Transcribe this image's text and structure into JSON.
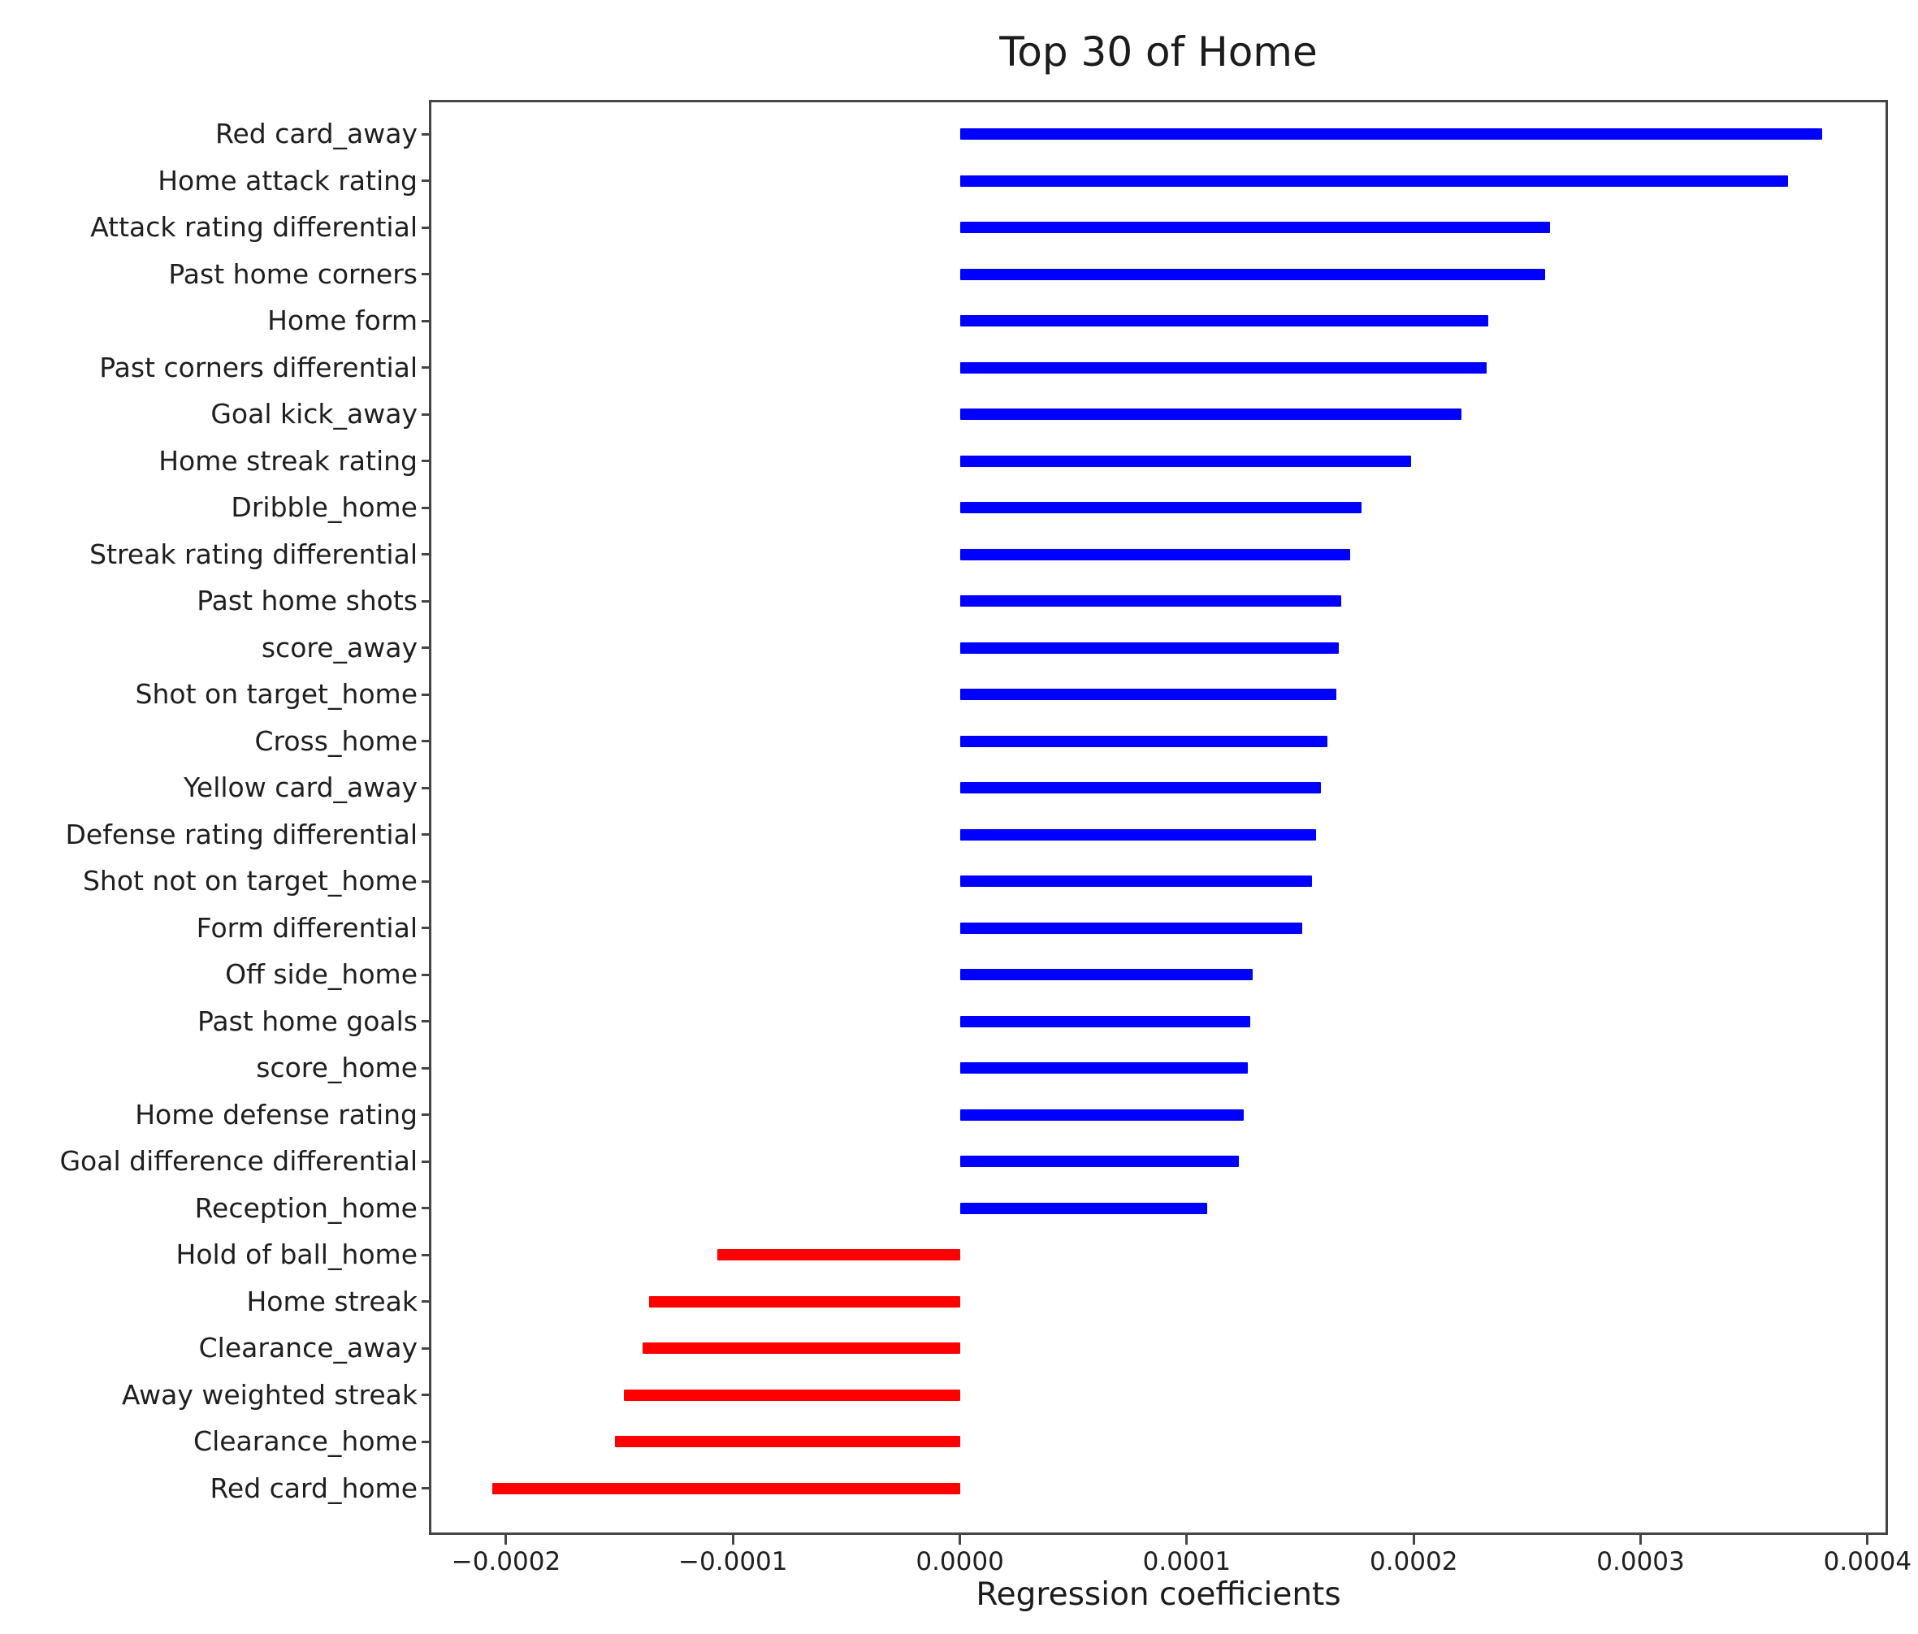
{
  "chart_data": {
    "type": "bar",
    "orientation": "horizontal",
    "title": "Top 30 of Home",
    "xlabel": "Regression coefficients",
    "ylabel": "",
    "grid": false,
    "legend": null,
    "xlim": [
      -0.000234,
      0.000409
    ],
    "xticks": [
      -0.0002,
      -0.0001,
      0.0,
      0.0001,
      0.0002,
      0.0003,
      0.0004
    ],
    "xtick_labels": [
      "−0.0002",
      "−0.0001",
      "0.0000",
      "0.0001",
      "0.0002",
      "0.0003",
      "0.0004"
    ],
    "categories": [
      "Red card_away",
      "Home attack rating",
      "Attack rating differential",
      "Past home corners",
      "Home form",
      "Past corners differential",
      "Goal kick_away",
      "Home streak rating",
      "Dribble_home",
      "Streak rating differential",
      "Past home shots",
      "score_away",
      "Shot on target_home",
      "Cross_home",
      "Yellow card_away",
      "Defense rating differential",
      "Shot not on target_home",
      "Form differential",
      "Off side_home",
      "Past home goals",
      "score_home",
      "Home defense rating",
      "Goal difference differential",
      "Reception_home",
      "Hold of ball_home",
      "Home streak",
      "Clearance_away",
      "Away weighted streak",
      "Clearance_home",
      "Red card_home"
    ],
    "values": [
      0.00038,
      0.000365,
      0.00026,
      0.000258,
      0.000233,
      0.000232,
      0.000221,
      0.000199,
      0.000177,
      0.000172,
      0.000168,
      0.000167,
      0.000166,
      0.000162,
      0.000159,
      0.000157,
      0.000155,
      0.000151,
      0.000129,
      0.000128,
      0.000127,
      0.000125,
      0.000123,
      0.000109,
      -0.000107,
      -0.000137,
      -0.00014,
      -0.000148,
      -0.000152,
      -0.000206
    ],
    "bar_colors": {
      "positive": "#0000ff",
      "negative": "#ff0000"
    }
  }
}
